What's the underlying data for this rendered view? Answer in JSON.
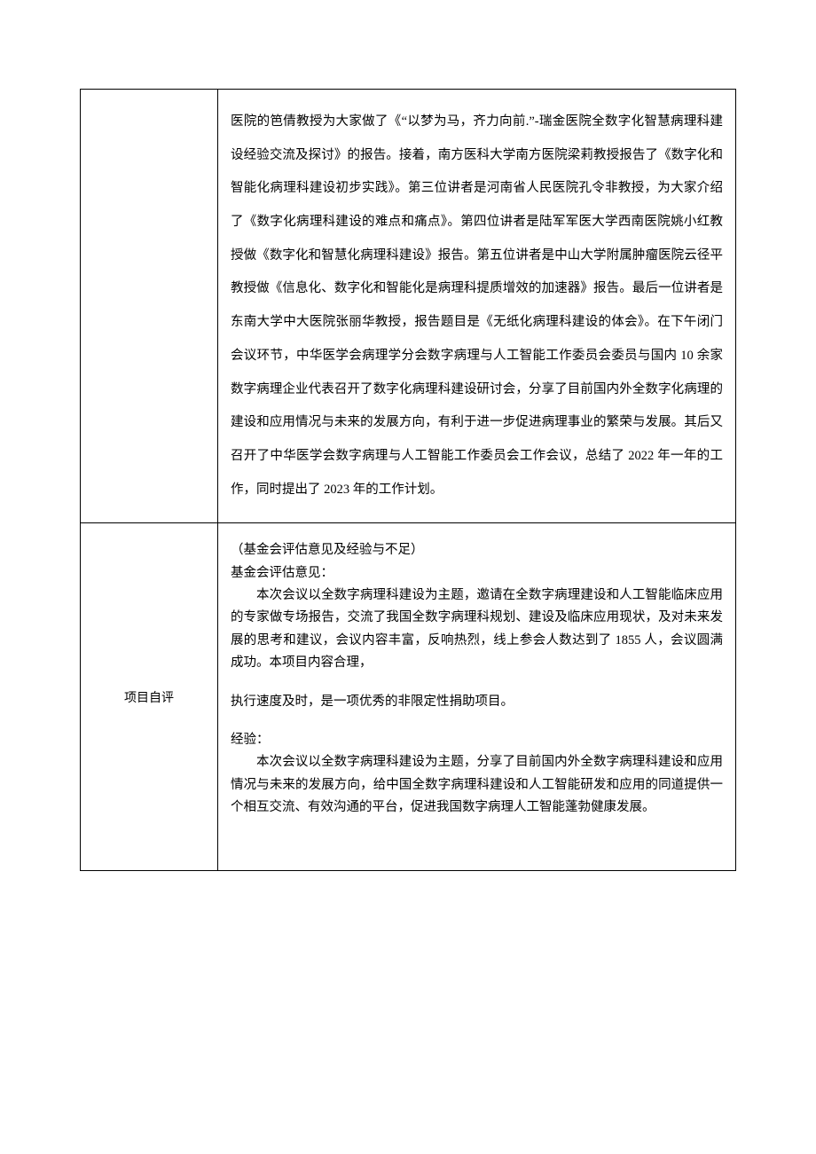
{
  "row1": {
    "label": "",
    "paragraph": "医院的笆倩教授为大家做了《“以梦为马，齐力向前.”-瑞金医院全数字化智慧病理科建设经验交流及探讨》的报告。接着，南方医科大学南方医院梁莉教授报告了《数字化和智能化病理科建设初步实践》。第三位讲者是河南省人民医院孔令非教授，为大家介绍了《数字化病理科建设的难点和痛点》。第四位讲者是陆军军医大学西南医院姚小红教授做《数字化和智慧化病理科建设》报告。第五位讲者是中山大学附属肿瘤医院云径平教授做《信息化、数字化和智能化是病理科提质增效的加速器》报告。最后一位讲者是东南大学中大医院张丽华教授，报告题目是《无纸化病理科建设的体会》。在下午闭门会议环节，中华医学会病理学分会数字病理与人工智能工作委员会委员与国内 10 余家数字病理企业代表召开了数字化病理科建设研讨会，分享了目前国内外全数字化病理的建设和应用情况与未来的发展方向，有利于进一步促进病理事业的繁荣与发展。其后又召开了中华医学会数字病理与人工智能工作委员会工作会议，总结了 2022 年一年的工作，同时提出了 2023 年的工作计划。"
  },
  "row2": {
    "label": "项目自评",
    "section1_title": "（基金会评估意见及经验与不足）",
    "section1_heading": "基金会评估意见：",
    "section1_p1": "本次会议以全数字病理科建设为主题，邀请在全数字病理建设和人工智能临床应用的专家做专场报告，交流了我国全数字病理科规划、建设及临床应用现状，及对未来发展的思考和建议，会议内容丰富，反响热烈，线上参会人数达到了 1855 人，会议圆满成功。本项目内容合理，",
    "section1_p2": "执行速度及时，是一项优秀的非限定性捐助项目。",
    "section2_heading": "经验：",
    "section2_p1": "本次会议以全数字病理科建设为主题，分享了目前国内外全数字病理科建设和应用情况与未来的发展方向，给中国全数字病理科建设和人工智能研发和应用的同道提供一个相互交流、有效沟通的平台，促进我国数字病理人工智能蓬勃健康发展。"
  }
}
